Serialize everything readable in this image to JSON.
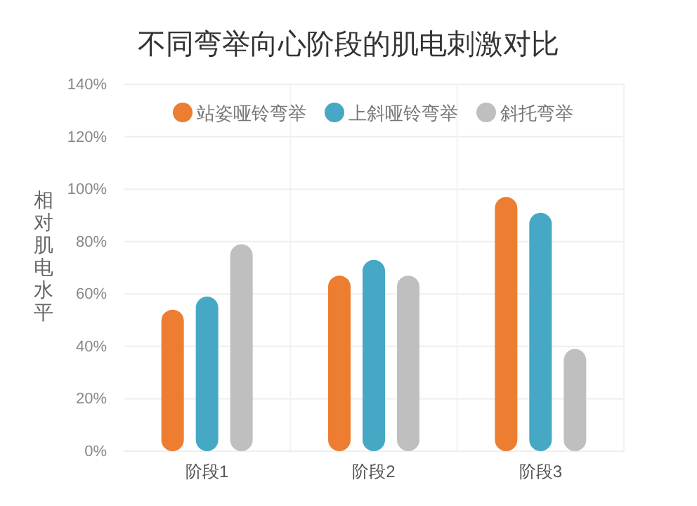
{
  "chart_data": {
    "type": "bar",
    "title": "不同弯举向心阶段的肌电刺激对比",
    "ylabel": "相对肌电水平",
    "categories": [
      "阶段1",
      "阶段2",
      "阶段3"
    ],
    "series": [
      {
        "name": "站姿哑铃弯举",
        "color": "#ed7d31",
        "values": [
          0.54,
          0.67,
          0.97
        ]
      },
      {
        "name": "上斜哑铃弯举",
        "color": "#46a8c4",
        "values": [
          0.59,
          0.73,
          0.91
        ]
      },
      {
        "name": "斜托弯举",
        "color": "#bfbfbf",
        "values": [
          0.79,
          0.67,
          0.39
        ]
      }
    ],
    "ylim": [
      0,
      1.4
    ],
    "yticks": [
      {
        "value": 0,
        "label": "0%"
      },
      {
        "value": 0.2,
        "label": "20%"
      },
      {
        "value": 0.4,
        "label": "40%"
      },
      {
        "value": 0.6,
        "label": "60%"
      },
      {
        "value": 0.8,
        "label": "80%"
      },
      {
        "value": 1,
        "label": "100%"
      },
      {
        "value": 1.2,
        "label": "120%"
      },
      {
        "value": 1.4,
        "label": "140%"
      }
    ],
    "grid": true,
    "legend": "top"
  }
}
